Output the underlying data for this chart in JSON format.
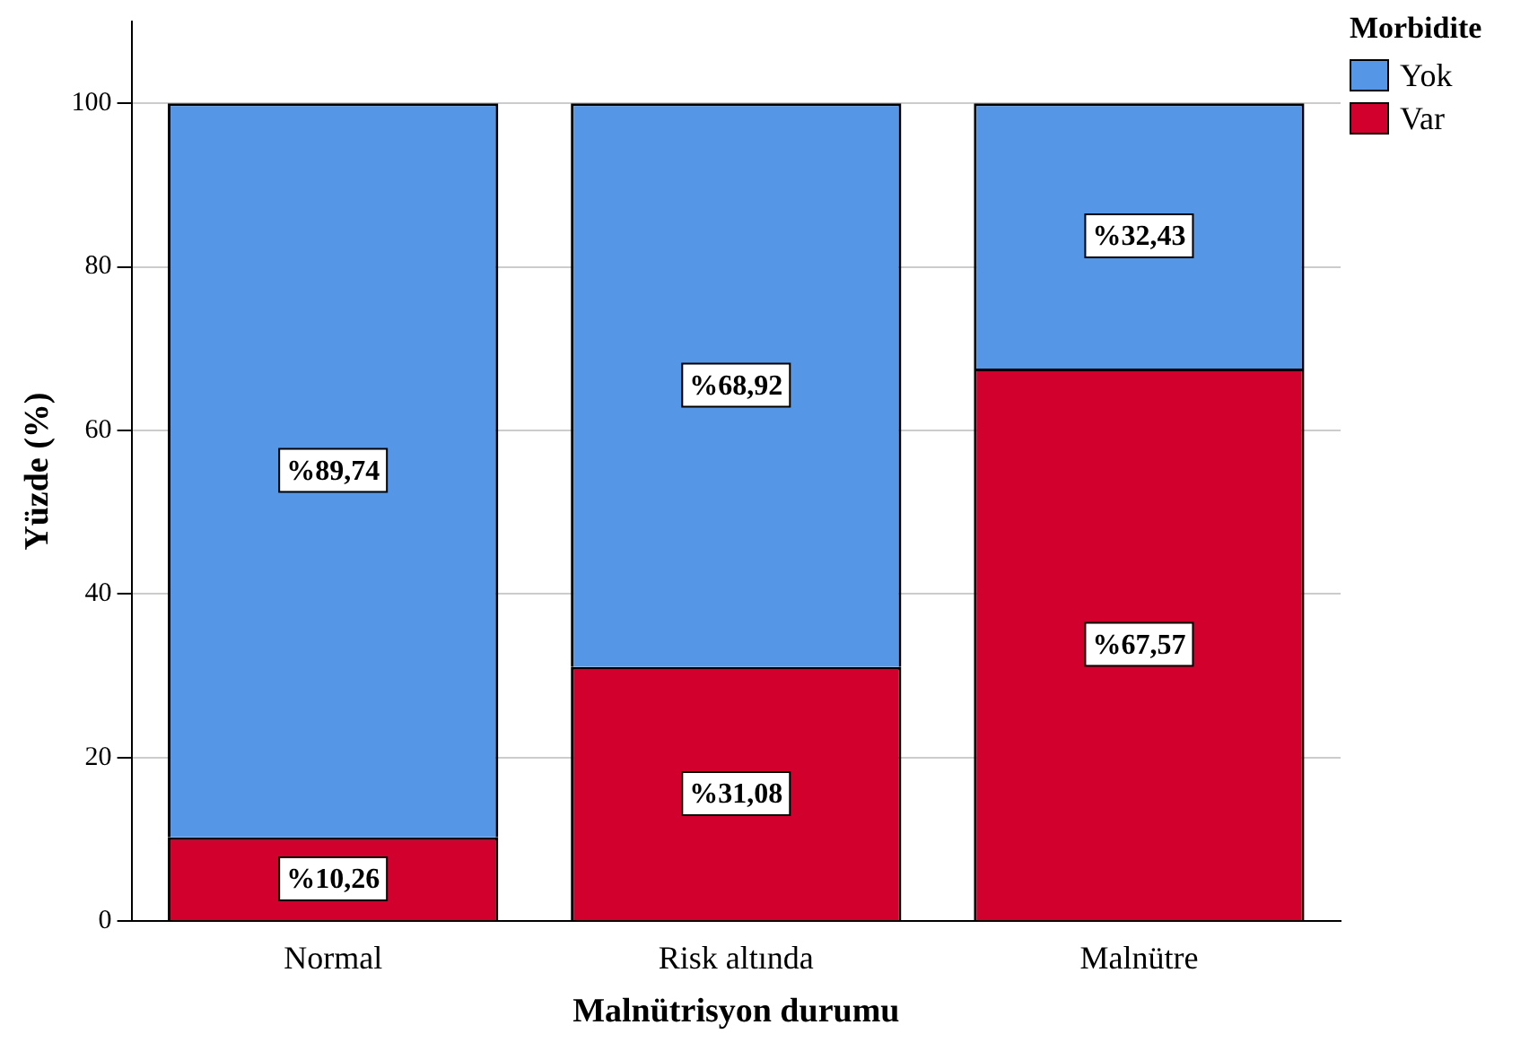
{
  "chart_data": {
    "type": "bar",
    "stacked": true,
    "xlabel": "Malnütrisyon durumu",
    "ylabel": "Yüzde (%)",
    "legend_title": "Morbidite",
    "legend": "top right",
    "categories": [
      "Normal",
      "Risk altında",
      "Malnütre"
    ],
    "series": [
      {
        "name": "Var",
        "color": "#d2002d",
        "values": [
          10.26,
          31.08,
          67.57
        ],
        "value_labels": [
          "%10,26",
          "%31,08",
          "%67,57"
        ]
      },
      {
        "name": "Yok",
        "color": "#5596e6",
        "values": [
          89.74,
          68.92,
          32.43
        ],
        "value_labels": [
          "%89,74",
          "%68,92",
          "%32,43"
        ]
      }
    ],
    "ylim": [
      0,
      110
    ],
    "yticks": [
      0,
      20,
      40,
      60,
      80,
      100
    ],
    "grid": "y"
  }
}
